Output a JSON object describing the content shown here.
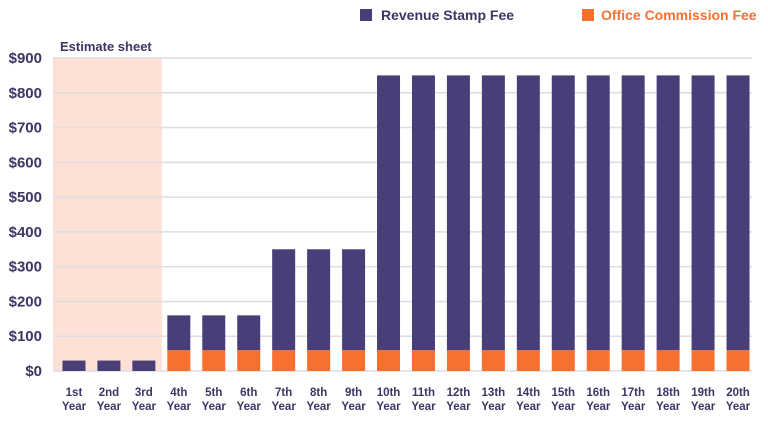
{
  "chart_data": {
    "type": "bar",
    "stacked": true,
    "categories": [
      "1st Year",
      "2nd Year",
      "3rd Year",
      "4th Year",
      "5th Year",
      "6th Year",
      "7th Year",
      "8th Year",
      "9th Year",
      "10th Year",
      "11th Year",
      "12th Year",
      "13th Year",
      "14th Year",
      "15th Year",
      "16th Year",
      "17th Year",
      "18th Year",
      "19th Year",
      "20th Year"
    ],
    "series": [
      {
        "name": "Office Commission Fee",
        "color": "#f7702f",
        "values": [
          0,
          0,
          0,
          60,
          60,
          60,
          60,
          60,
          60,
          60,
          60,
          60,
          60,
          60,
          60,
          60,
          60,
          60,
          60,
          60
        ]
      },
      {
        "name": "Revenue Stamp Fee",
        "color": "#4a3e78",
        "values": [
          30,
          30,
          30,
          100,
          100,
          100,
          290,
          290,
          290,
          790,
          790,
          790,
          790,
          790,
          790,
          790,
          790,
          790,
          790,
          790
        ]
      }
    ],
    "ylim": [
      0,
      900
    ],
    "yticks": [
      "$0",
      "$100",
      "$200",
      "$300",
      "$400",
      "$500",
      "$600",
      "$700",
      "$800",
      "$900"
    ],
    "grid": true,
    "legend": "top-right",
    "annotation": {
      "label": "Estimate sheet",
      "categories": [
        "1st Year",
        "2nd Year",
        "3rd Year"
      ],
      "color": "#fde1d6"
    }
  }
}
